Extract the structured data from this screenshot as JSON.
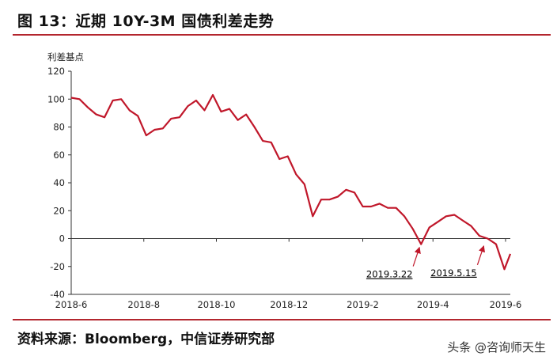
{
  "header": {
    "title": "图 13：近期 10Y-3M 国债利差走势"
  },
  "footer": {
    "source": "资料来源：Bloomberg，中信证券研究部",
    "watermark": "头条 @咨询师天生"
  },
  "chart_data": {
    "type": "line",
    "ylabel": "利差基点",
    "ylim": [
      -40,
      120
    ],
    "yticks": [
      -40,
      -20,
      0,
      20,
      40,
      60,
      80,
      100,
      120
    ],
    "xticks": [
      "2018-6",
      "2018-8",
      "2018-10",
      "2018-12",
      "2019-2",
      "2019-4",
      "2019-6"
    ],
    "xrange": [
      "2018-06-01",
      "2019-06-05"
    ],
    "line_color": "#c0172a",
    "annotations": [
      {
        "text": "2019.3.22",
        "x": "2019-03-22",
        "y": -4
      },
      {
        "text": "2019.5.15",
        "x": "2019-05-15",
        "y": -3
      }
    ],
    "series": [
      {
        "x": [
          "2018-06-01",
          "2018-06-08",
          "2018-06-15",
          "2018-06-22",
          "2018-06-29",
          "2018-07-06",
          "2018-07-13",
          "2018-07-20",
          "2018-07-27",
          "2018-08-03",
          "2018-08-10",
          "2018-08-17",
          "2018-08-24",
          "2018-08-31",
          "2018-09-07",
          "2018-09-14",
          "2018-09-21",
          "2018-09-28",
          "2018-10-05",
          "2018-10-12",
          "2018-10-19",
          "2018-10-26",
          "2018-11-02",
          "2018-11-09",
          "2018-11-16",
          "2018-11-23",
          "2018-11-30",
          "2018-12-07",
          "2018-12-14",
          "2018-12-21",
          "2018-12-28",
          "2019-01-04",
          "2019-01-11",
          "2019-01-18",
          "2019-01-25",
          "2019-02-01",
          "2019-02-08",
          "2019-02-15",
          "2019-02-22",
          "2019-03-01",
          "2019-03-08",
          "2019-03-15",
          "2019-03-22",
          "2019-03-29",
          "2019-04-05",
          "2019-04-12",
          "2019-04-19",
          "2019-04-26",
          "2019-05-03",
          "2019-05-10",
          "2019-05-17",
          "2019-05-24",
          "2019-05-31",
          "2019-06-05"
        ],
        "values": [
          101,
          100,
          94,
          89,
          87,
          99,
          100,
          92,
          88,
          74,
          78,
          79,
          86,
          87,
          95,
          99,
          92,
          103,
          91,
          93,
          85,
          89,
          80,
          70,
          69,
          57,
          59,
          46,
          39,
          16,
          28,
          28,
          30,
          35,
          33,
          23,
          23,
          25,
          22,
          22,
          16,
          7,
          -4,
          8,
          12,
          16,
          17,
          13,
          9,
          2,
          0,
          -4,
          -22,
          -11
        ]
      }
    ]
  }
}
